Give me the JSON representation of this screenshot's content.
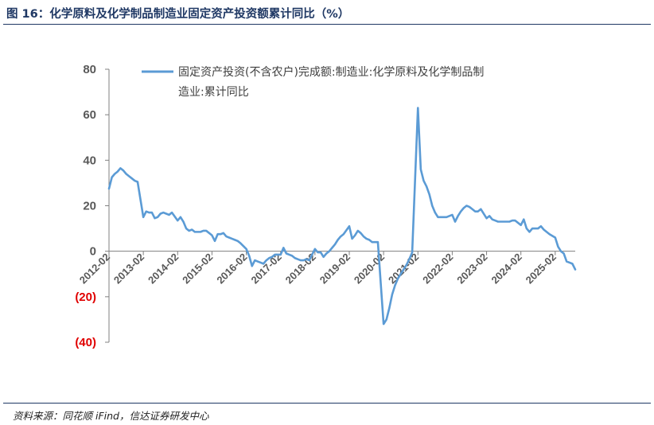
{
  "title": "图 16：化学原料及化学制品制造业固定资产投资额累计同比（%）",
  "source": "资料来源：同花顺 iFind，信达证券研发中心",
  "colors": {
    "series": "#5b9bd5",
    "title": "#1f3864",
    "negative_tick": "#e00000"
  },
  "chart_data": {
    "type": "line",
    "ylim": [
      -40,
      80
    ],
    "y_ticks": [
      {
        "value": 80,
        "label": "80"
      },
      {
        "value": 60,
        "label": "60"
      },
      {
        "value": 40,
        "label": "40"
      },
      {
        "value": 20,
        "label": "20"
      },
      {
        "value": 0,
        "label": "0"
      },
      {
        "value": -20,
        "label": "(20)"
      },
      {
        "value": -40,
        "label": "(40)"
      }
    ],
    "x_ticks": [
      "2012-02",
      "2013-02",
      "2014-02",
      "2015-02",
      "2016-02",
      "2017-02",
      "2018-02",
      "2019-02",
      "2020-02",
      "2021-02",
      "2022-02",
      "2023-02",
      "2024-02",
      "2025-02"
    ],
    "legend": {
      "line1": "固定资产投资(不含农户)完成额:制造业:化学原料及化学制品制",
      "line2": "造业:累计同比",
      "position": "top"
    },
    "series": [
      {
        "name": "固定资产投资(不含农户)完成额:制造业:化学原料及化学制品制造业:累计同比",
        "color": "#5b9bd5",
        "points": [
          [
            "2012-02",
            27.5
          ],
          [
            "2012-03",
            32.5
          ],
          [
            "2012-04",
            34
          ],
          [
            "2012-05",
            35
          ],
          [
            "2012-06",
            36.5
          ],
          [
            "2012-07",
            35.5
          ],
          [
            "2012-08",
            34
          ],
          [
            "2012-09",
            33
          ],
          [
            "2012-10",
            32
          ],
          [
            "2012-11",
            31
          ],
          [
            "2012-12",
            30.5
          ],
          [
            "2013-02",
            15
          ],
          [
            "2013-03",
            17.5
          ],
          [
            "2013-04",
            17
          ],
          [
            "2013-05",
            17
          ],
          [
            "2013-06",
            14.5
          ],
          [
            "2013-07",
            15
          ],
          [
            "2013-08",
            16.5
          ],
          [
            "2013-09",
            17
          ],
          [
            "2013-10",
            16.5
          ],
          [
            "2013-11",
            16
          ],
          [
            "2013-12",
            17
          ],
          [
            "2014-02",
            13.5
          ],
          [
            "2014-03",
            15
          ],
          [
            "2014-04",
            13
          ],
          [
            "2014-05",
            10
          ],
          [
            "2014-06",
            9
          ],
          [
            "2014-07",
            9.5
          ],
          [
            "2014-08",
            8.5
          ],
          [
            "2014-09",
            8.5
          ],
          [
            "2014-10",
            8.5
          ],
          [
            "2014-11",
            9
          ],
          [
            "2014-12",
            9
          ],
          [
            "2015-02",
            7
          ],
          [
            "2015-03",
            4.5
          ],
          [
            "2015-04",
            7.5
          ],
          [
            "2015-05",
            7.5
          ],
          [
            "2015-06",
            8
          ],
          [
            "2015-07",
            6.5
          ],
          [
            "2015-08",
            6
          ],
          [
            "2015-09",
            5.5
          ],
          [
            "2015-10",
            5
          ],
          [
            "2015-11",
            4.5
          ],
          [
            "2015-12",
            3.5
          ],
          [
            "2016-02",
            1
          ],
          [
            "2016-03",
            -2
          ],
          [
            "2016-04",
            -6.5
          ],
          [
            "2016-05",
            -4
          ],
          [
            "2016-06",
            -4.5
          ],
          [
            "2016-07",
            -5
          ],
          [
            "2016-08",
            -5.5
          ],
          [
            "2016-09",
            -4
          ],
          [
            "2016-10",
            -3
          ],
          [
            "2016-11",
            -2.5
          ],
          [
            "2016-12",
            -1.5
          ],
          [
            "2017-02",
            -1.5
          ],
          [
            "2017-03",
            1.5
          ],
          [
            "2017-04",
            -1
          ],
          [
            "2017-05",
            -1.5
          ],
          [
            "2017-06",
            -2
          ],
          [
            "2017-07",
            -3
          ],
          [
            "2017-08",
            -3.5
          ],
          [
            "2017-09",
            -4
          ],
          [
            "2017-10",
            -4
          ],
          [
            "2017-11",
            -3.5
          ],
          [
            "2017-12",
            -4
          ],
          [
            "2018-02",
            1
          ],
          [
            "2018-03",
            -0.5
          ],
          [
            "2018-04",
            -0.5
          ],
          [
            "2018-05",
            -2.5
          ],
          [
            "2018-06",
            -1
          ],
          [
            "2018-07",
            0
          ],
          [
            "2018-08",
            1.5
          ],
          [
            "2018-09",
            3
          ],
          [
            "2018-10",
            5
          ],
          [
            "2018-11",
            6.5
          ],
          [
            "2018-12",
            7.5
          ],
          [
            "2019-02",
            11
          ],
          [
            "2019-03",
            5.5
          ],
          [
            "2019-04",
            7
          ],
          [
            "2019-05",
            9
          ],
          [
            "2019-06",
            8
          ],
          [
            "2019-07",
            6.5
          ],
          [
            "2019-08",
            5.5
          ],
          [
            "2019-09",
            5
          ],
          [
            "2019-10",
            4
          ],
          [
            "2019-11",
            4
          ],
          [
            "2019-12",
            4
          ],
          [
            "2020-02",
            -32
          ],
          [
            "2020-03",
            -30
          ],
          [
            "2020-04",
            -25
          ],
          [
            "2020-05",
            -19
          ],
          [
            "2020-06",
            -15
          ],
          [
            "2020-07",
            -12
          ],
          [
            "2020-08",
            -10
          ],
          [
            "2020-09",
            -8
          ],
          [
            "2020-10",
            -6
          ],
          [
            "2020-11",
            -3.5
          ],
          [
            "2020-12",
            -0.5
          ],
          [
            "2021-02",
            63
          ],
          [
            "2021-03",
            36
          ],
          [
            "2021-04",
            31
          ],
          [
            "2021-05",
            28.5
          ],
          [
            "2021-06",
            25
          ],
          [
            "2021-07",
            20
          ],
          [
            "2021-08",
            17
          ],
          [
            "2021-09",
            15
          ],
          [
            "2021-10",
            15
          ],
          [
            "2021-11",
            15
          ],
          [
            "2021-12",
            15
          ],
          [
            "2022-02",
            16
          ],
          [
            "2022-03",
            13
          ],
          [
            "2022-04",
            15.5
          ],
          [
            "2022-05",
            17.5
          ],
          [
            "2022-06",
            19
          ],
          [
            "2022-07",
            20
          ],
          [
            "2022-08",
            19.5
          ],
          [
            "2022-09",
            18.5
          ],
          [
            "2022-10",
            17.5
          ],
          [
            "2022-11",
            17.5
          ],
          [
            "2022-12",
            18.5
          ],
          [
            "2023-02",
            14.5
          ],
          [
            "2023-03",
            15.5
          ],
          [
            "2023-04",
            14
          ],
          [
            "2023-05",
            13.5
          ],
          [
            "2023-06",
            13
          ],
          [
            "2023-07",
            13
          ],
          [
            "2023-08",
            13
          ],
          [
            "2023-09",
            13
          ],
          [
            "2023-10",
            13
          ],
          [
            "2023-11",
            13.5
          ],
          [
            "2023-12",
            13.5
          ],
          [
            "2024-02",
            11.5
          ],
          [
            "2024-03",
            14
          ],
          [
            "2024-04",
            10
          ],
          [
            "2024-05",
            8.5
          ],
          [
            "2024-06",
            10
          ],
          [
            "2024-07",
            10
          ],
          [
            "2024-08",
            10
          ],
          [
            "2024-09",
            11
          ],
          [
            "2024-10",
            9.5
          ],
          [
            "2024-11",
            8.5
          ],
          [
            "2024-12",
            7.5
          ],
          [
            "2025-02",
            6
          ],
          [
            "2025-03",
            2
          ],
          [
            "2025-04",
            0
          ],
          [
            "2025-05",
            -1
          ],
          [
            "2025-06",
            -4.5
          ],
          [
            "2025-07",
            -5
          ],
          [
            "2025-08",
            -5.5
          ],
          [
            "2025-09",
            -8
          ]
        ]
      }
    ]
  }
}
